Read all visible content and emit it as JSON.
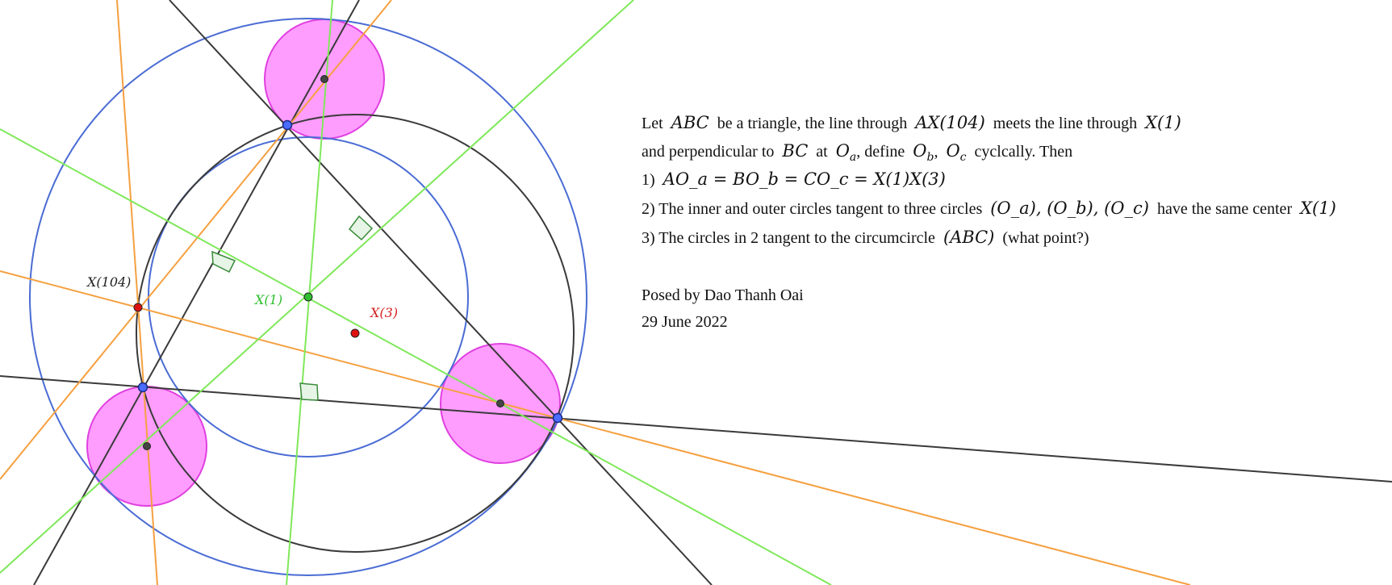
{
  "labels": {
    "x104": "X(104)",
    "x1": "X(1)",
    "x3": "X(3)"
  },
  "text": {
    "l1_a": "Let",
    "l1_m1": "ABC",
    "l1_b": "be a triangle, the line through",
    "l1_m2": "AX(104)",
    "l1_c": "meets the line through",
    "l1_m3": "X(1)",
    "l2_a": "and perpendicular to",
    "l2_m1": "BC",
    "l2_b": "at",
    "l2_m2": "O",
    "l2_m2_sub": "a",
    "l2_c": ", define",
    "l2_m3": "O",
    "l2_m3_sub": "b",
    "l2_d": ",",
    "l2_m4": "O",
    "l2_m4_sub": "c",
    "l2_e": "cyclcally. Then",
    "l3_a": "1)",
    "l3_m": "AO_a = BO_b = CO_c = X(1)X(3)",
    "l4_a": "2) The inner and outer circles tangent to three circles",
    "l4_m": "(O_a), (O_b), (O_c)",
    "l4_b": "have the same center",
    "l4_m2": "X(1)",
    "l5_a": "3) The circles in 2 tangent to the circumcircle",
    "l5_m": "(ABC)",
    "l5_b": "(what point?)",
    "author": "Posed by Dao Thanh Oai",
    "date": "29 June 2022"
  },
  "colors": {
    "blue": "#4a6cd4",
    "dark": "#3a3a3a",
    "orange": "#f5a040",
    "green": "#7fe85a",
    "magenta": "#ff9dff",
    "magenta_stroke": "#e040e0",
    "red_point": "#e01010",
    "green_point": "#2fbf2f",
    "vertex": "#4a6cff"
  }
}
